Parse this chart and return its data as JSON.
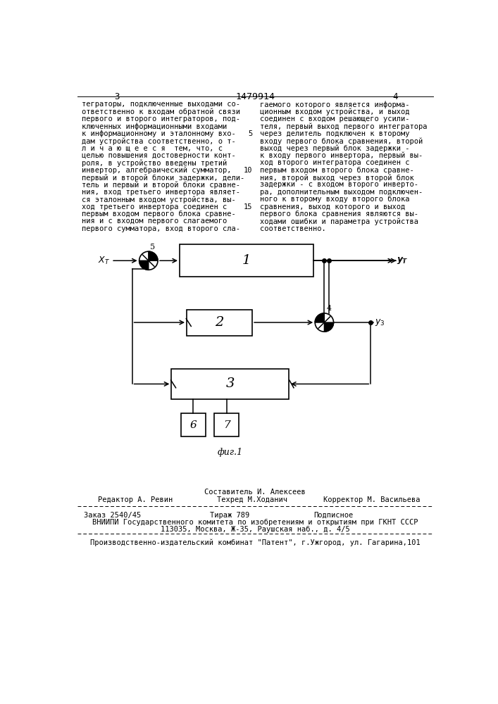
{
  "page_number_left": "3",
  "page_number_right": "4",
  "patent_number": "1479914",
  "text_left_lines": [
    "теграторы, подключенные выходами со-",
    "ответственно к входам обратной связи",
    "первого и второго интеграторов, под-",
    "ключенных информационными входами",
    "к информационному и эталонному вхо-",
    "дам устройства соответственно, о т-",
    "л и ч а ю щ е е с я  тем, что, с",
    "целью повышения достоверности конт-",
    "роля, в устройство введены третий",
    "инвертор, алгебраический сумматор,",
    "первый и второй блоки задержки, дели-",
    "тель и первый и второй блоки сравне-",
    "ния, вход третьего инвертора являет-",
    "ся эталонным входом устройства, вы-",
    "ход третьего инвертора соединен с",
    "первым входом первого блока сравне-",
    "ния и с входом первого слагаемого",
    "первого сумматора, вход второго сла-"
  ],
  "text_right_lines": [
    "гаемого которого является информа-",
    "ционным входом устройства, и выход",
    "соединен с входом решающего усили-",
    "теля, первый выход первого интегратора",
    "через делитель подключен к второму",
    "входу первого блока сравнения, второй",
    "выход через первый блок задержки -",
    "к входу первого инвертора, первый вы-",
    "ход второго интегратора соединен с",
    "первым входом второго блока сравне-",
    "ния, второй выход через второй блок",
    "задержки - с входом второго инверто-",
    "ра, дополнительным выходом подключен-",
    "ного к второму входу второго блока",
    "сравнения, выход которого и выход",
    "первого блока сравнения являются вы-",
    "ходами ошибки и параметра устройства",
    "соответственно."
  ],
  "line_num_5_row": 4,
  "line_num_10_row": 9,
  "line_num_15_row": 14,
  "fig_caption": "фиг.1",
  "footer_line1": "Составитель И. Алексеев",
  "footer_editor": "Редактор А. Ревин",
  "footer_tech": "Техред М.Ходанич",
  "footer_corrector": "Корректор М. Васильева",
  "footer_order": "Заказ 2540/45",
  "footer_tirazh": "Тираж 789",
  "footer_podp": "Подписное",
  "footer_vniip": "ВНИИПИ Государственного комитета по изобретениям и открытиям при ГКНТ СССР",
  "footer_addr": "113035, Москва, Ж-35, Раушская наб., д. 4/5",
  "footer_prod": "Производственно-издательский комбинат \"Патент\", г.Ужгород, ул. Гагарина,101",
  "bg_color": "#ffffff",
  "text_color": "#000000"
}
